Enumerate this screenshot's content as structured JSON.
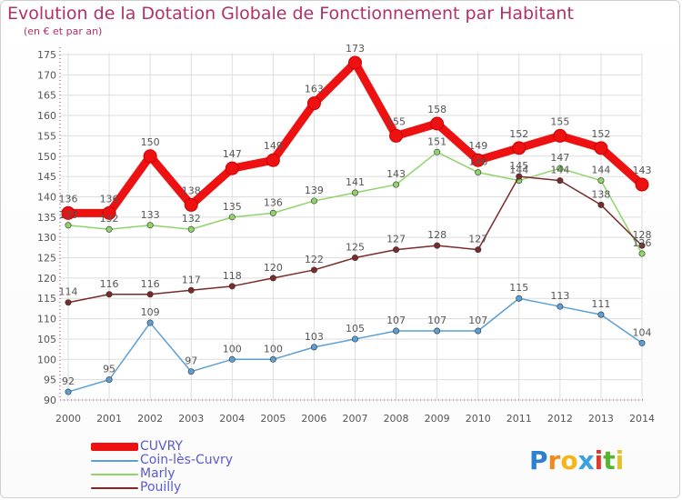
{
  "title": "Evolution de la Dotation Globale de Fonctionnement par Habitant",
  "subtitle": "(en € et par an)",
  "logo": {
    "letters": [
      "P",
      "r",
      "o",
      "x",
      "i",
      "t",
      "i"
    ],
    "colors": [
      "#2e7fd0",
      "#f28a1a",
      "#f5b51a",
      "#3aa0e0",
      "#e03a2e",
      "#58b52e",
      "#e8c12a"
    ]
  },
  "colors": {
    "title": "#b0306a",
    "axis": "#b0306a",
    "grid": "#dddddd",
    "label": "#555555"
  },
  "chart_data": {
    "type": "line",
    "title": "Evolution de la Dotation Globale de Fonctionnement par Habitant",
    "subtitle": "(en € et par an)",
    "xlabel": "",
    "ylabel": "",
    "x": [
      "2000",
      "2001",
      "2002",
      "2003",
      "2004",
      "2005",
      "2006",
      "2007",
      "2008",
      "2009",
      "2010",
      "2011",
      "2012",
      "2013",
      "2014"
    ],
    "ylim": [
      90,
      175
    ],
    "yticks": [
      "90",
      "95",
      "100",
      "105",
      "110",
      "115",
      "120",
      "125",
      "130",
      "135",
      "140",
      "145",
      "150",
      "155",
      "160",
      "165",
      "170",
      "175"
    ],
    "grid": true,
    "legend_position": "bottom-left",
    "series": [
      {
        "name": "CUVRY",
        "color": "#ee1111",
        "width": 9,
        "values": [
          136,
          136,
          150,
          138,
          147,
          149,
          163,
          173,
          155,
          158,
          149,
          152,
          155,
          152,
          143
        ],
        "labels": [
          "136",
          "136",
          "150",
          "138",
          "147",
          "149",
          "163",
          "173",
          "155",
          "158",
          "149",
          "152",
          "155",
          "152",
          "143"
        ]
      },
      {
        "name": "Coin-lès-Cuvry",
        "color": "#5b9fd4",
        "width": 1.5,
        "values": [
          92,
          95,
          109,
          97,
          100,
          100,
          103,
          105,
          107,
          107,
          107,
          115,
          113,
          111,
          104
        ],
        "labels": [
          "92",
          "95",
          "109",
          "97",
          "100",
          "100",
          "103",
          "105",
          "107",
          "107",
          "107",
          "115",
          "113",
          "111",
          "104"
        ]
      },
      {
        "name": "Marly",
        "color": "#8fd46a",
        "width": 1.5,
        "values": [
          133,
          132,
          133,
          132,
          135,
          136,
          139,
          141,
          143,
          151,
          146,
          144,
          147,
          144,
          126
        ],
        "labels": [
          "133",
          "132",
          "133",
          "132",
          "135",
          "136",
          "139",
          "141",
          "143",
          "151",
          "146",
          "144",
          "147",
          "144",
          "126"
        ]
      },
      {
        "name": "Pouilly",
        "color": "#7a2a2a",
        "width": 1.5,
        "values": [
          114,
          116,
          116,
          117,
          118,
          120,
          122,
          125,
          127,
          128,
          127,
          145,
          144,
          138,
          128
        ],
        "labels": [
          "114",
          "116",
          "116",
          "117",
          "118",
          "120",
          "122",
          "125",
          "127",
          "128",
          "127",
          "145",
          "144",
          "138",
          "128"
        ]
      }
    ]
  }
}
